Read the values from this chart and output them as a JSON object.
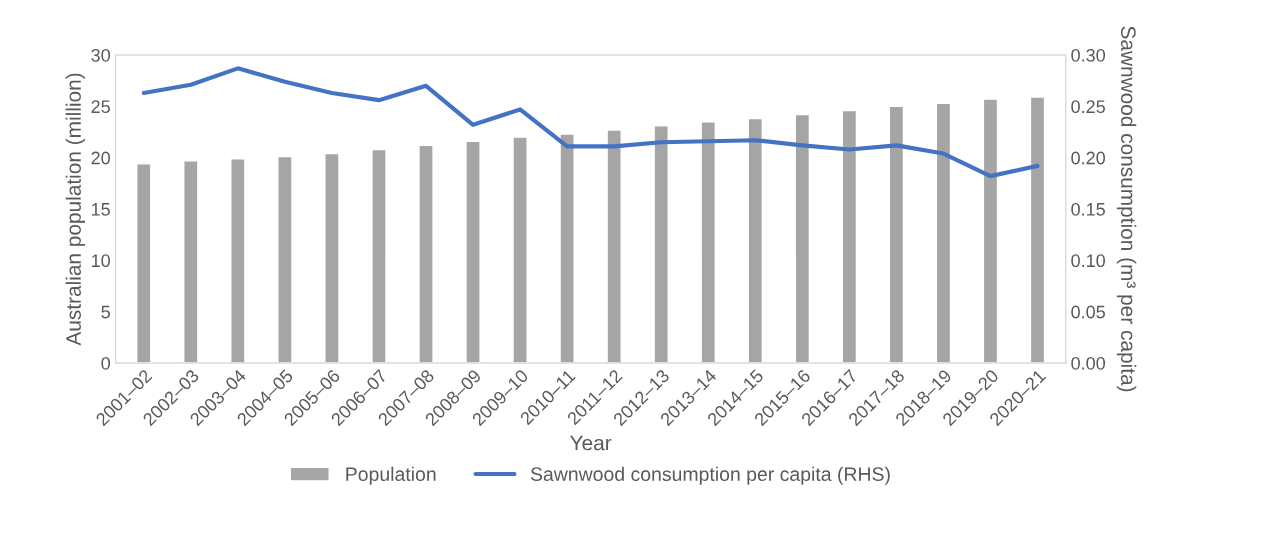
{
  "chart_data": {
    "type": "bar",
    "xlabel": "Year",
    "ylabel": "Australian population (million)",
    "y2label": "Sawnwood consumption (m³ per capita)",
    "categories": [
      "2001–02",
      "2002–03",
      "2003–04",
      "2004–05",
      "2005–06",
      "2006–07",
      "2007–08",
      "2008–09",
      "2009–10",
      "2010–11",
      "2011–12",
      "2012–13",
      "2013–14",
      "2014–15",
      "2015–16",
      "2016–17",
      "2017–18",
      "2018–19",
      "2019–20",
      "2020–21"
    ],
    "series": [
      {
        "name": "Population",
        "color": "#a5a5a5",
        "values": [
          19.4,
          19.7,
          19.9,
          20.1,
          20.4,
          20.8,
          21.2,
          21.6,
          22.0,
          22.3,
          22.7,
          23.1,
          23.5,
          23.8,
          24.2,
          24.6,
          25.0,
          25.3,
          25.7,
          25.9
        ]
      },
      {
        "name": "Sawnwood consumption per capita (RHS)",
        "type": "line",
        "axis": "y2",
        "color": "#4472c4",
        "values": [
          0.263,
          0.271,
          0.287,
          0.274,
          0.263,
          0.256,
          0.27,
          0.232,
          0.247,
          0.211,
          0.211,
          0.215,
          0.216,
          0.217,
          0.212,
          0.208,
          0.212,
          0.204,
          0.182,
          0.192
        ]
      }
    ],
    "ylim": [
      0,
      30
    ],
    "yticks": [
      0,
      5,
      10,
      15,
      20,
      25,
      30
    ],
    "y2lim": [
      0,
      0.3
    ],
    "y2ticks": [
      {
        "value": 0,
        "label": "0.00"
      },
      {
        "value": 0.05,
        "label": "0.05"
      },
      {
        "value": 0.1,
        "label": "0.10"
      },
      {
        "value": 0.15,
        "label": "0.15"
      },
      {
        "value": 0.2,
        "label": "0.20"
      },
      {
        "value": 0.25,
        "label": "0.25"
      },
      {
        "value": 0.3,
        "label": "0.30"
      }
    ],
    "grid": false,
    "legend": "bottom",
    "marker": "none",
    "line_style": "solid"
  }
}
